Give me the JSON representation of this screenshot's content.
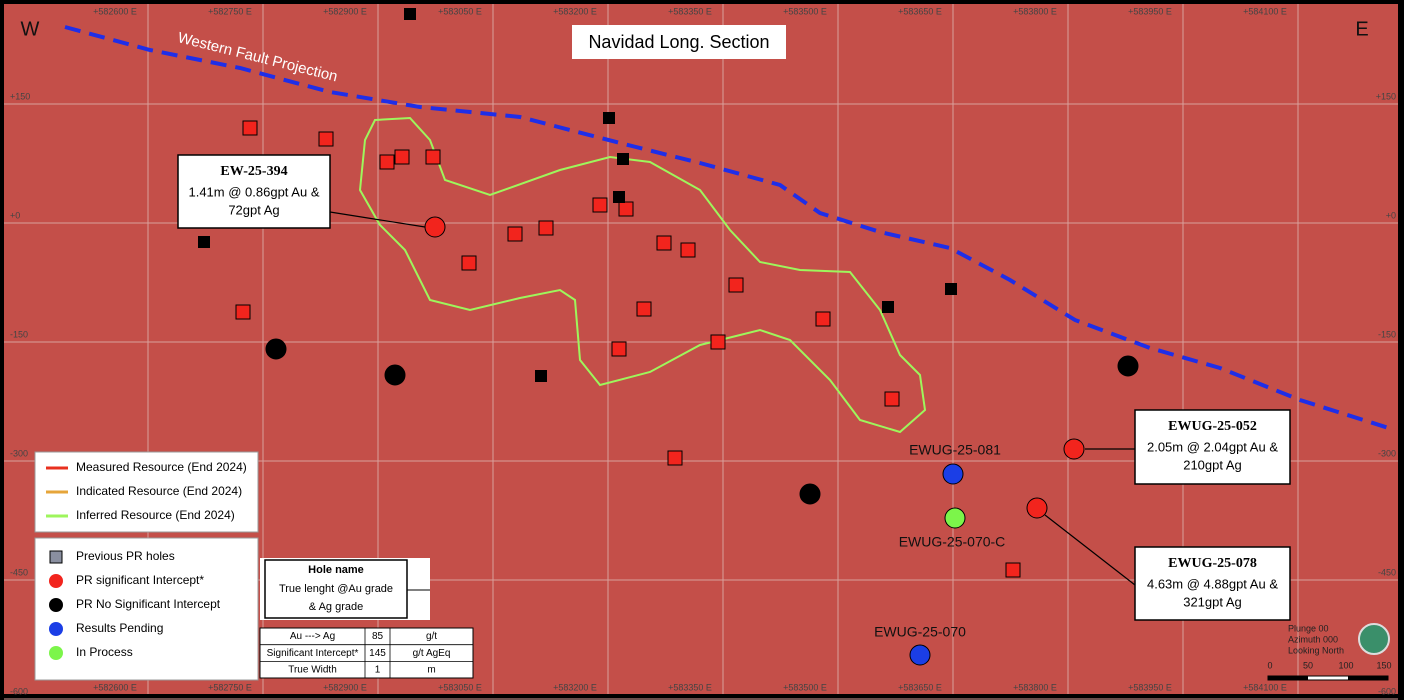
{
  "compass": {
    "west": "W",
    "east": "E"
  },
  "title": "Navidad Long. Section",
  "fault_label": "Western Fault Projection",
  "grid": {
    "x_labels": [
      "+582600 E",
      "+582750 E",
      "+582900 E",
      "+583050 E",
      "+583200 E",
      "+583350 E",
      "+583500 E",
      "+583650 E",
      "+583800 E",
      "+583950 E",
      "+584100 E"
    ],
    "y_labels": [
      "+150",
      "+0",
      "-150",
      "-300",
      "-450",
      "-600"
    ]
  },
  "callouts": [
    {
      "hole": "EW-25-394",
      "lines": [
        "1.41m @ 0.86gpt Au &",
        "72gpt Ag"
      ]
    },
    {
      "hole": "EWUG-25-052",
      "lines": [
        "2.05m @ 2.04gpt Au &",
        "210gpt Ag"
      ]
    },
    {
      "hole": "EWUG-25-078",
      "lines": [
        "4.63m @ 4.88gpt Au &",
        "321gpt Ag"
      ]
    }
  ],
  "hole_labels": [
    "EWUG-25-081",
    "EWUG-25-070-C",
    "EWUG-25-070"
  ],
  "legend_resources": [
    "Measured  Resource (End 2024)",
    "Indicated  Resource (End 2024)",
    "Inferred  Resource (End 2024)"
  ],
  "legend_holes": [
    "Previous PR holes",
    "PR significant Intercept*",
    "PR No Significant Intercept",
    "Results Pending",
    "In Process"
  ],
  "key": {
    "title": "Hole name",
    "lines": [
      "True lenght @Au grade",
      "& Ag grade"
    ]
  },
  "parameters": {
    "rows": [
      [
        "Au ---> Ag",
        85,
        "g/t"
      ],
      [
        "Significant Intercept*",
        145,
        "g/t AgEq"
      ],
      [
        "True Width",
        1,
        "m"
      ]
    ]
  },
  "orientation": [
    "Plunge 00",
    "Azimuth 000",
    "Looking North"
  ],
  "scale": {
    "ticks": [
      "0",
      "50",
      "100",
      "150"
    ]
  }
}
